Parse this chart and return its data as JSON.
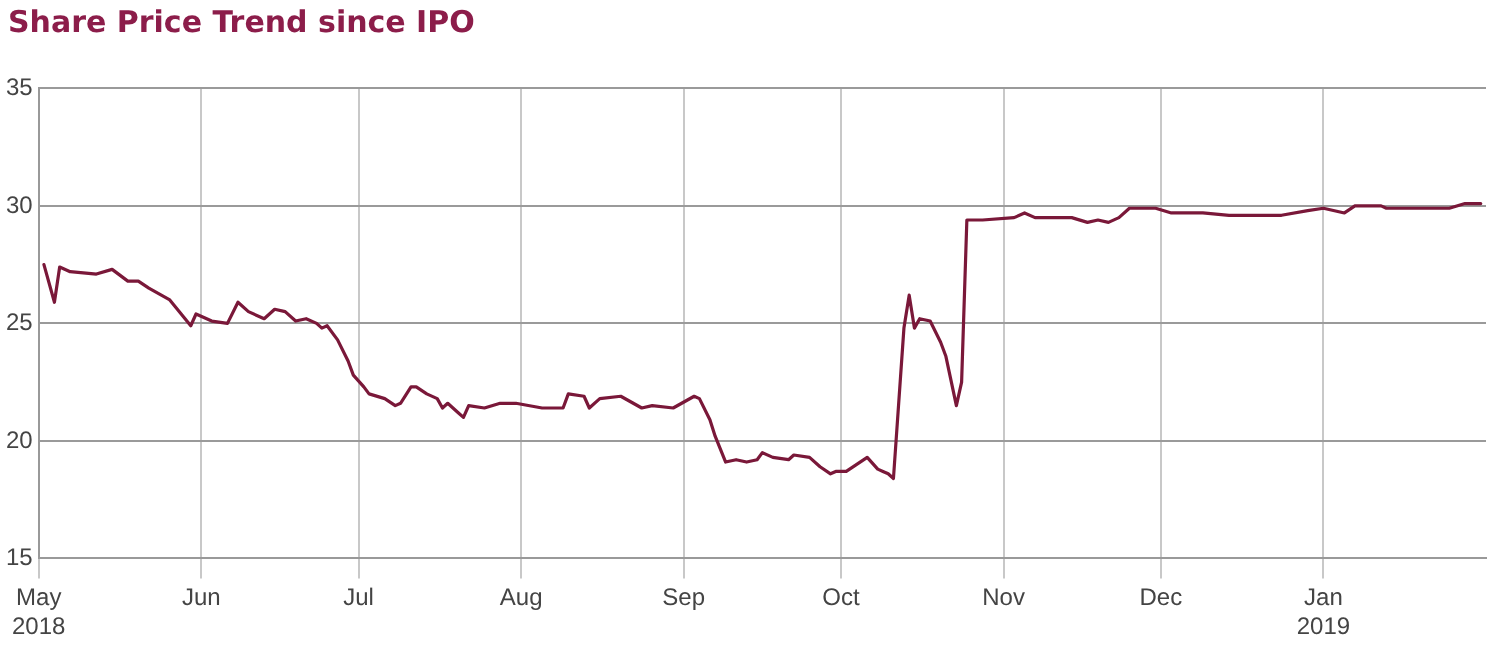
{
  "chart_data": {
    "type": "line",
    "title": "Share Price Trend since IPO",
    "x": [
      "2018-05-02",
      "2018-05-04",
      "2018-05-05",
      "2018-05-07",
      "2018-05-12",
      "2018-05-15",
      "2018-05-18",
      "2018-05-20",
      "2018-05-22",
      "2018-05-26",
      "2018-05-30",
      "2018-05-31",
      "2018-06-03",
      "2018-06-06",
      "2018-06-08",
      "2018-06-10",
      "2018-06-13",
      "2018-06-15",
      "2018-06-17",
      "2018-06-19",
      "2018-06-21",
      "2018-06-23",
      "2018-06-24",
      "2018-06-25",
      "2018-06-27",
      "2018-06-29",
      "2018-06-30",
      "2018-07-02",
      "2018-07-03",
      "2018-07-06",
      "2018-07-08",
      "2018-07-09",
      "2018-07-11",
      "2018-07-12",
      "2018-07-14",
      "2018-07-16",
      "2018-07-17",
      "2018-07-18",
      "2018-07-20",
      "2018-07-21",
      "2018-07-22",
      "2018-07-25",
      "2018-07-28",
      "2018-07-31",
      "2018-08-05",
      "2018-08-09",
      "2018-08-10",
      "2018-08-13",
      "2018-08-14",
      "2018-08-16",
      "2018-08-20",
      "2018-08-24",
      "2018-08-26",
      "2018-08-30",
      "2018-09-03",
      "2018-09-04",
      "2018-09-06",
      "2018-09-07",
      "2018-09-09",
      "2018-09-11",
      "2018-09-13",
      "2018-09-15",
      "2018-09-16",
      "2018-09-18",
      "2018-09-21",
      "2018-09-22",
      "2018-09-25",
      "2018-09-27",
      "2018-09-29",
      "2018-09-30",
      "2018-10-02",
      "2018-10-04",
      "2018-10-06",
      "2018-10-08",
      "2018-10-09",
      "2018-10-10",
      "2018-10-11",
      "2018-10-13",
      "2018-10-14",
      "2018-10-15",
      "2018-10-16",
      "2018-10-18",
      "2018-10-20",
      "2018-10-21",
      "2018-10-23",
      "2018-10-24",
      "2018-10-25",
      "2018-10-28",
      "2018-11-03",
      "2018-11-05",
      "2018-11-07",
      "2018-11-10",
      "2018-11-14",
      "2018-11-17",
      "2018-11-19",
      "2018-11-21",
      "2018-11-23",
      "2018-11-25",
      "2018-11-30",
      "2018-12-03",
      "2018-12-09",
      "2018-12-14",
      "2018-12-21",
      "2018-12-24",
      "2018-12-29",
      "2019-01-01",
      "2019-01-05",
      "2019-01-07",
      "2019-01-12",
      "2019-01-13",
      "2019-01-20",
      "2019-01-25",
      "2019-01-28",
      "2019-01-31"
    ],
    "series": [
      {
        "color": "#7a1839",
        "values": [
          27.5,
          25.9,
          27.4,
          27.2,
          27.1,
          27.3,
          26.8,
          26.8,
          26.5,
          26.0,
          24.9,
          25.4,
          25.1,
          25.0,
          25.9,
          25.5,
          25.2,
          25.6,
          25.5,
          25.1,
          25.2,
          25.0,
          24.8,
          24.9,
          24.3,
          23.4,
          22.8,
          22.3,
          22.0,
          21.8,
          21.5,
          21.6,
          22.3,
          22.3,
          22.0,
          21.8,
          21.4,
          21.6,
          21.2,
          21.0,
          21.5,
          21.4,
          21.6,
          21.6,
          21.4,
          21.4,
          22.0,
          21.9,
          21.4,
          21.8,
          21.9,
          21.4,
          21.5,
          21.4,
          21.9,
          21.8,
          20.9,
          20.2,
          19.1,
          19.2,
          19.1,
          19.2,
          19.5,
          19.3,
          19.2,
          19.4,
          19.3,
          18.9,
          18.6,
          18.7,
          18.7,
          19.0,
          19.3,
          18.8,
          18.7,
          18.6,
          18.4,
          24.8,
          26.2,
          24.8,
          25.2,
          25.1,
          24.2,
          23.6,
          21.5,
          22.5,
          29.4,
          29.4,
          29.5,
          29.7,
          29.5,
          29.5,
          29.5,
          29.3,
          29.4,
          29.3,
          29.5,
          29.9,
          29.9,
          29.7,
          29.7,
          29.6,
          29.6,
          29.6,
          29.8,
          29.9,
          29.7,
          30.0,
          30.0,
          29.9,
          29.9,
          29.9,
          30.1,
          30.1
        ]
      }
    ],
    "xlim": [
      "2018-05-01",
      "2019-02-01"
    ],
    "xticks": [
      {
        "value": "2018-05-01",
        "label": "May 2018"
      },
      {
        "value": "2018-06-01",
        "label": "Jun"
      },
      {
        "value": "2018-07-01",
        "label": "Jul"
      },
      {
        "value": "2018-08-01",
        "label": "Aug"
      },
      {
        "value": "2018-09-01",
        "label": "Sep"
      },
      {
        "value": "2018-10-01",
        "label": "Oct"
      },
      {
        "value": "2018-11-01",
        "label": "Nov"
      },
      {
        "value": "2018-12-01",
        "label": "Dec"
      },
      {
        "value": "2019-01-01",
        "label": "Jan 2019"
      }
    ],
    "ylim": [
      15,
      35
    ],
    "yticks": [
      15,
      20,
      25,
      30,
      35
    ],
    "grid": true,
    "marker": "none",
    "line_style": "solid"
  }
}
